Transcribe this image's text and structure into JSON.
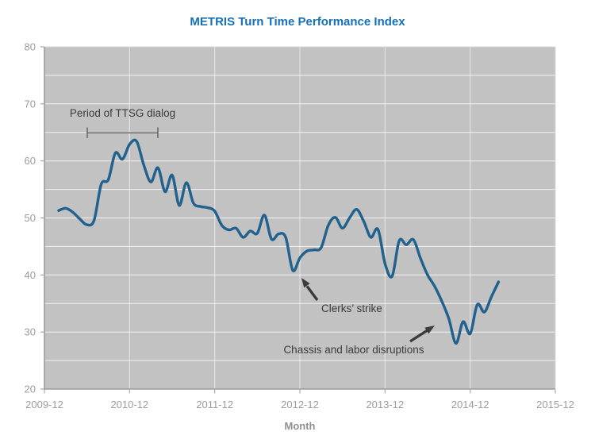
{
  "chart_data": {
    "type": "line",
    "title": "METRIS Turn Time Performance Index",
    "xlabel": "Month",
    "ylabel": "",
    "ylim": [
      20,
      80
    ],
    "x_start": "2009-12",
    "x_end": "2015-12",
    "x_ticks": [
      "2009-12",
      "2010-12",
      "2011-12",
      "2012-12",
      "2013-12",
      "2014-12",
      "2015-12"
    ],
    "y_ticks": [
      20,
      30,
      40,
      50,
      60,
      70,
      80
    ],
    "y_grid_step": 5,
    "grid": true,
    "legend_position": "none",
    "series": [
      {
        "name": "METRIS Turn Time Performance Index",
        "x": [
          "2010-02",
          "2010-03",
          "2010-04",
          "2010-05",
          "2010-06",
          "2010-07",
          "2010-08",
          "2010-09",
          "2010-10",
          "2010-11",
          "2010-12",
          "2011-01",
          "2011-02",
          "2011-03",
          "2011-04",
          "2011-05",
          "2011-06",
          "2011-07",
          "2011-08",
          "2011-09",
          "2011-10",
          "2011-11",
          "2011-12",
          "2012-01",
          "2012-02",
          "2012-03",
          "2012-04",
          "2012-05",
          "2012-06",
          "2012-07",
          "2012-08",
          "2012-09",
          "2012-10",
          "2012-11",
          "2012-12",
          "2013-01",
          "2013-02",
          "2013-03",
          "2013-04",
          "2013-05",
          "2013-06",
          "2013-07",
          "2013-08",
          "2013-09",
          "2013-10",
          "2013-11",
          "2013-12",
          "2014-01",
          "2014-02",
          "2014-03",
          "2014-04",
          "2014-05",
          "2014-06",
          "2014-07",
          "2014-08",
          "2014-09",
          "2014-10",
          "2014-11",
          "2014-12",
          "2015-01",
          "2015-02",
          "2015-03",
          "2015-04"
        ],
        "values": [
          51.3,
          51.7,
          51.0,
          49.8,
          48.8,
          49.6,
          55.9,
          56.7,
          61.4,
          60.3,
          62.9,
          63.4,
          59.3,
          56.3,
          58.8,
          54.6,
          57.5,
          52.2,
          56.2,
          52.6,
          52.0,
          51.8,
          51.2,
          48.7,
          47.9,
          48.2,
          46.6,
          47.7,
          47.3,
          50.5,
          46.3,
          47.2,
          46.6,
          40.8,
          43.0,
          44.2,
          44.4,
          44.8,
          48.7,
          50.1,
          48.2,
          50.0,
          51.5,
          49.4,
          46.6,
          48.0,
          42.0,
          39.8,
          46.0,
          45.3,
          46.2,
          42.9,
          40.0,
          38.0,
          35.4,
          32.3,
          28.0,
          31.8,
          29.7,
          34.8,
          33.5,
          36.2,
          38.8
        ]
      }
    ],
    "annotations": [
      {
        "id": "ttsg",
        "type": "bracket",
        "label": "Period of TTSG dialog",
        "from": "2010-06",
        "to": "2011-04",
        "y": 64.9
      },
      {
        "id": "clerks",
        "type": "arrow",
        "label": "Clerks’ strike",
        "target_x": "2012-11",
        "target_y": 41
      },
      {
        "id": "chassis",
        "type": "arrow",
        "label": "Chassis and labor disruptions",
        "target_x": "2014-10",
        "target_y": 30
      }
    ],
    "colors": {
      "line": "#20618e",
      "title": "#1470b8",
      "plot_background": "#c2c2c2",
      "gridline": "#ffffff",
      "axis": "#9a9a9a",
      "tick_label": "#9c9c9c",
      "axis_title": "#8f8f8f",
      "annotation": "#3b3b3b"
    }
  }
}
